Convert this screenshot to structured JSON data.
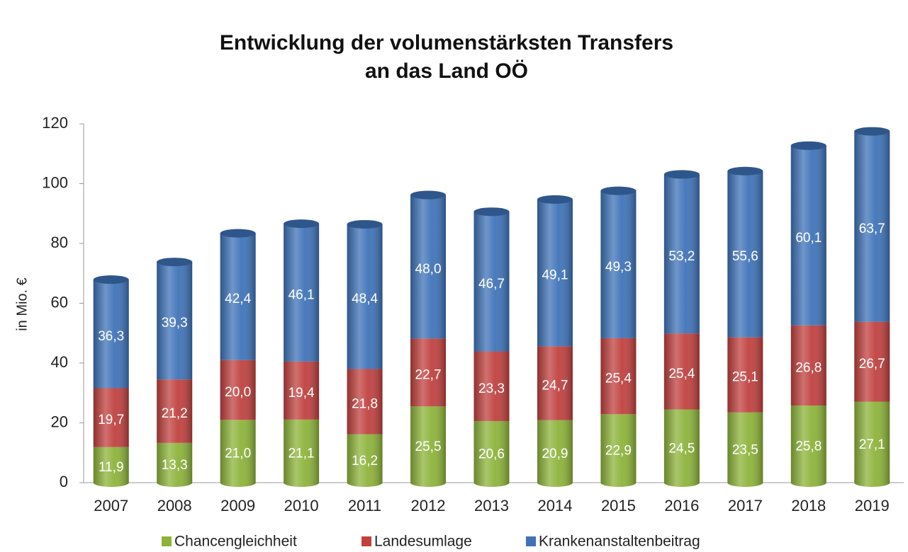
{
  "chart_data": {
    "type": "stacked_bar",
    "title": [
      "Entwicklung der volumenstärksten Transfers",
      "an das Land OÖ"
    ],
    "y_label": "in Mio. €",
    "categories": [
      "2007",
      "2008",
      "2009",
      "2010",
      "2011",
      "2012",
      "2013",
      "2014",
      "2015",
      "2016",
      "2017",
      "2018",
      "2019"
    ],
    "series": [
      {
        "name": "Chancengleichheit",
        "color": "#8db33a",
        "values": [
          11.9,
          13.3,
          21.0,
          21.1,
          16.2,
          25.5,
          20.6,
          20.9,
          22.9,
          24.5,
          23.5,
          25.8,
          27.1
        ],
        "value_labels": [
          "11,9",
          "13,3",
          "21,0",
          "21,1",
          "16,2",
          "25,5",
          "20,6",
          "20,9",
          "22,9",
          "24,5",
          "23,5",
          "25,8",
          "27,1"
        ]
      },
      {
        "name": "Landesumlage",
        "color": "#c0413f",
        "values": [
          19.7,
          21.2,
          20.0,
          19.4,
          21.8,
          22.7,
          23.3,
          24.7,
          25.4,
          25.4,
          25.1,
          26.8,
          26.7
        ],
        "value_labels": [
          "19,7",
          "21,2",
          "20,0",
          "19,4",
          "21,8",
          "22,7",
          "23,3",
          "24,7",
          "25,4",
          "25,4",
          "25,1",
          "26,8",
          "26,7"
        ]
      },
      {
        "name": "Krankenanstaltenbeitrag",
        "color": "#3f73b8",
        "values": [
          36.3,
          39.3,
          42.4,
          46.1,
          48.4,
          48.0,
          46.7,
          49.1,
          49.3,
          53.2,
          55.6,
          60.1,
          63.7
        ],
        "value_labels": [
          "36,3",
          "39,3",
          "42,4",
          "46,1",
          "48,4",
          "48,0",
          "46,7",
          "49,1",
          "49,3",
          "53,2",
          "55,6",
          "60,1",
          "63,7"
        ]
      }
    ],
    "ylim": [
      0,
      120
    ],
    "yticks": [
      0,
      20,
      40,
      60,
      80,
      100,
      120
    ],
    "legend": "bottom"
  }
}
